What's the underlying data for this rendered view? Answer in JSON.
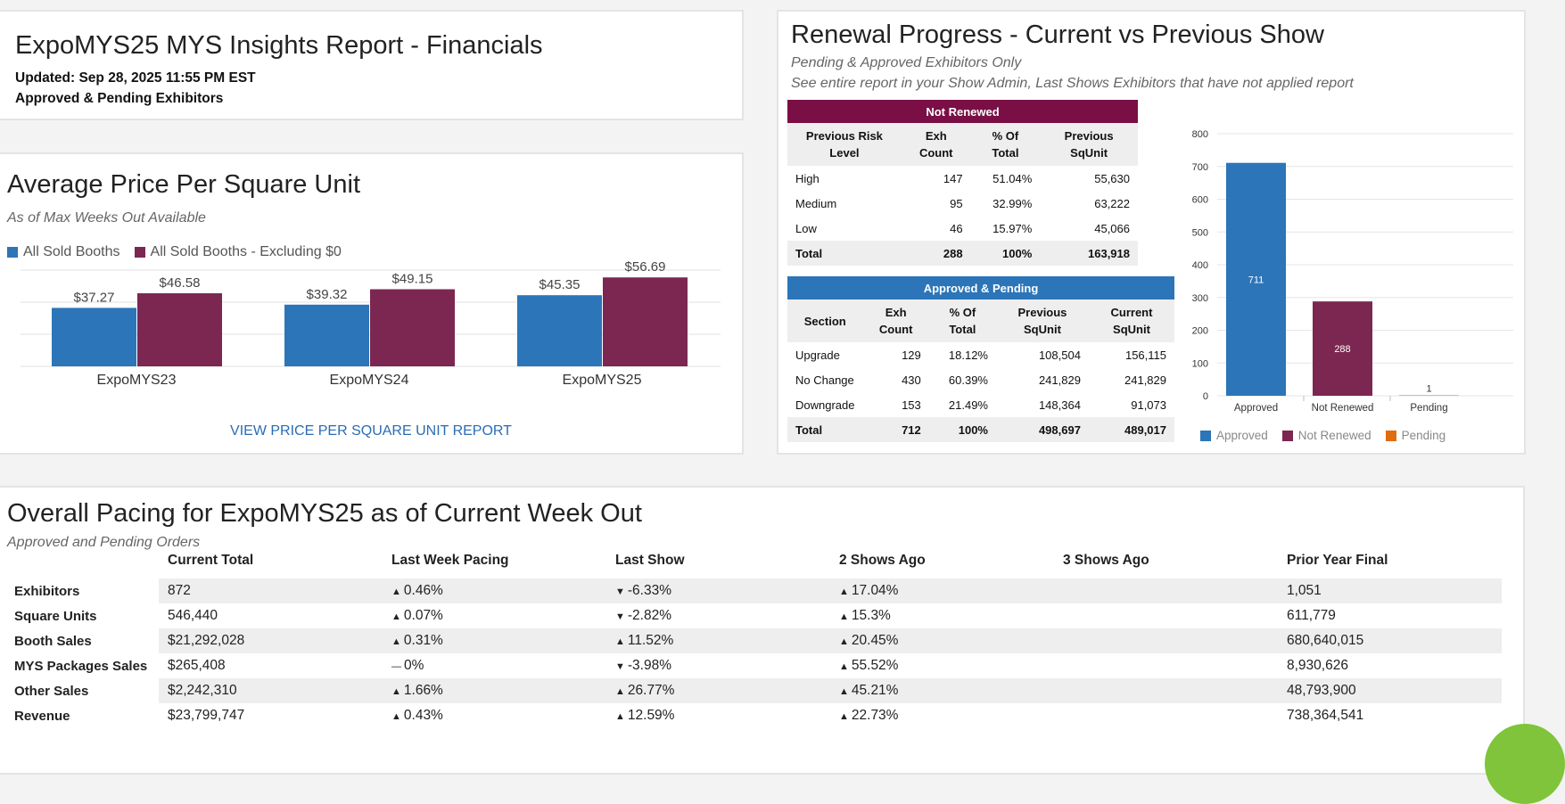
{
  "header": {
    "title": "ExpoMYS25 MYS Insights Report - Financials",
    "updated": "Updated: Sep 28, 2025 11:55 PM EST",
    "scope": "Approved & Pending Exhibitors"
  },
  "price_panel": {
    "title": "Average Price Per Square Unit",
    "subtitle": "As of Max Weeks Out Available",
    "legend": [
      "All Sold Booths",
      "All Sold Booths - Excluding $0"
    ],
    "link": "VIEW PRICE PER SQUARE UNIT REPORT"
  },
  "renewal_panel": {
    "title": "Renewal Progress - Current vs Previous Show",
    "subtitle1": "Pending & Approved Exhibitors Only",
    "subtitle2": "See entire report in your Show Admin, Last Shows Exhibitors that have not applied report",
    "not_renewed": {
      "title": "Not Renewed",
      "headers": [
        "Previous Risk Level",
        "Exh Count",
        "% Of Total",
        "Previous SqUnit"
      ],
      "rows": [
        [
          "High",
          "147",
          "51.04%",
          "55,630"
        ],
        [
          "Medium",
          "95",
          "32.99%",
          "63,222"
        ],
        [
          "Low",
          "46",
          "15.97%",
          "45,066"
        ]
      ],
      "total": [
        "Total",
        "288",
        "100%",
        "163,918"
      ]
    },
    "approved_pending": {
      "title": "Approved & Pending",
      "headers": [
        "Section",
        "Exh Count",
        "% Of Total",
        "Previous SqUnit",
        "Current SqUnit"
      ],
      "rows": [
        [
          "Upgrade",
          "129",
          "18.12%",
          "108,504",
          "156,115"
        ],
        [
          "No Change",
          "430",
          "60.39%",
          "241,829",
          "241,829"
        ],
        [
          "Downgrade",
          "153",
          "21.49%",
          "148,364",
          "91,073"
        ]
      ],
      "total": [
        "Total",
        "712",
        "100%",
        "498,697",
        "489,017"
      ]
    }
  },
  "pacing_panel": {
    "title": "Overall Pacing for ExpoMYS25 as of Current Week Out",
    "subtitle": "Approved and Pending Orders",
    "columns": [
      "Current Total",
      "Last Week Pacing",
      "Last Show",
      "2 Shows Ago",
      "3 Shows Ago",
      "Prior Year Final"
    ],
    "rows": [
      {
        "label": "Exhibitors",
        "current": "872",
        "last_week": "0.46%",
        "last_week_dir": "up",
        "last_show": "-6.33%",
        "last_show_dir": "down",
        "two_ago": "17.04%",
        "two_ago_dir": "up",
        "three_ago": "",
        "prior_final": "1,051"
      },
      {
        "label": "Square Units",
        "current": "546,440",
        "last_week": "0.07%",
        "last_week_dir": "up",
        "last_show": "-2.82%",
        "last_show_dir": "down",
        "two_ago": "15.3%",
        "two_ago_dir": "up",
        "three_ago": "",
        "prior_final": "611,779"
      },
      {
        "label": "Booth Sales",
        "current": "$21,292,028",
        "last_week": "0.31%",
        "last_week_dir": "up",
        "last_show": "11.52%",
        "last_show_dir": "up",
        "two_ago": "20.45%",
        "two_ago_dir": "up",
        "three_ago": "",
        "prior_final": "680,640,015"
      },
      {
        "label": "MYS Packages Sales",
        "current": "$265,408",
        "last_week": "0%",
        "last_week_dir": "flat",
        "last_show": "-3.98%",
        "last_show_dir": "down",
        "two_ago": "55.52%",
        "two_ago_dir": "up",
        "three_ago": "",
        "prior_final": "8,930,626"
      },
      {
        "label": "Other Sales",
        "current": "$2,242,310",
        "last_week": "1.66%",
        "last_week_dir": "up",
        "last_show": "26.77%",
        "last_show_dir": "up",
        "two_ago": "45.21%",
        "two_ago_dir": "up",
        "three_ago": "",
        "prior_final": "48,793,900"
      },
      {
        "label": "Revenue",
        "current": "$23,799,747",
        "last_week": "0.43%",
        "last_week_dir": "up",
        "last_show": "12.59%",
        "last_show_dir": "up",
        "two_ago": "22.73%",
        "two_ago_dir": "up",
        "three_ago": "",
        "prior_final": "738,364,541"
      }
    ]
  },
  "colors": {
    "blue": "#2c75b8",
    "maroon": "#7b2752",
    "dark_maroon": "#7a0f45",
    "orange": "#e06c10",
    "up": "#3cb11e",
    "down": "#d9471e",
    "flat": "#f0b400"
  },
  "icons": {
    "up": "triangle-up-icon",
    "down": "triangle-down-icon",
    "flat": "dash-icon"
  },
  "chart_data": [
    {
      "type": "bar",
      "categories": [
        "ExpoMYS23",
        "ExpoMYS24",
        "ExpoMYS25"
      ],
      "series": [
        {
          "name": "All Sold Booths",
          "values": [
            37.27,
            39.32,
            45.35
          ],
          "labels": [
            "$37.27",
            "$39.32",
            "$45.35"
          ]
        },
        {
          "name": "All Sold Booths - Excluding $0",
          "values": [
            46.58,
            49.15,
            56.69
          ],
          "labels": [
            "$46.58",
            "$49.15",
            "$56.69"
          ]
        }
      ],
      "ylim": [
        0,
        60
      ],
      "grid": true,
      "legend": "top-left"
    },
    {
      "type": "bar",
      "categories": [
        "Approved",
        "Not Renewed",
        "Pending"
      ],
      "values": [
        711,
        288,
        1
      ],
      "labels": [
        "711",
        "288",
        "1"
      ],
      "yticks": [
        "0",
        "100",
        "200",
        "300",
        "400",
        "500",
        "600",
        "700",
        "800"
      ],
      "ylim": [
        0,
        800
      ],
      "grid": true,
      "legend": "bottom",
      "legend_entries": [
        "Approved",
        "Not Renewed",
        "Pending"
      ]
    }
  ]
}
